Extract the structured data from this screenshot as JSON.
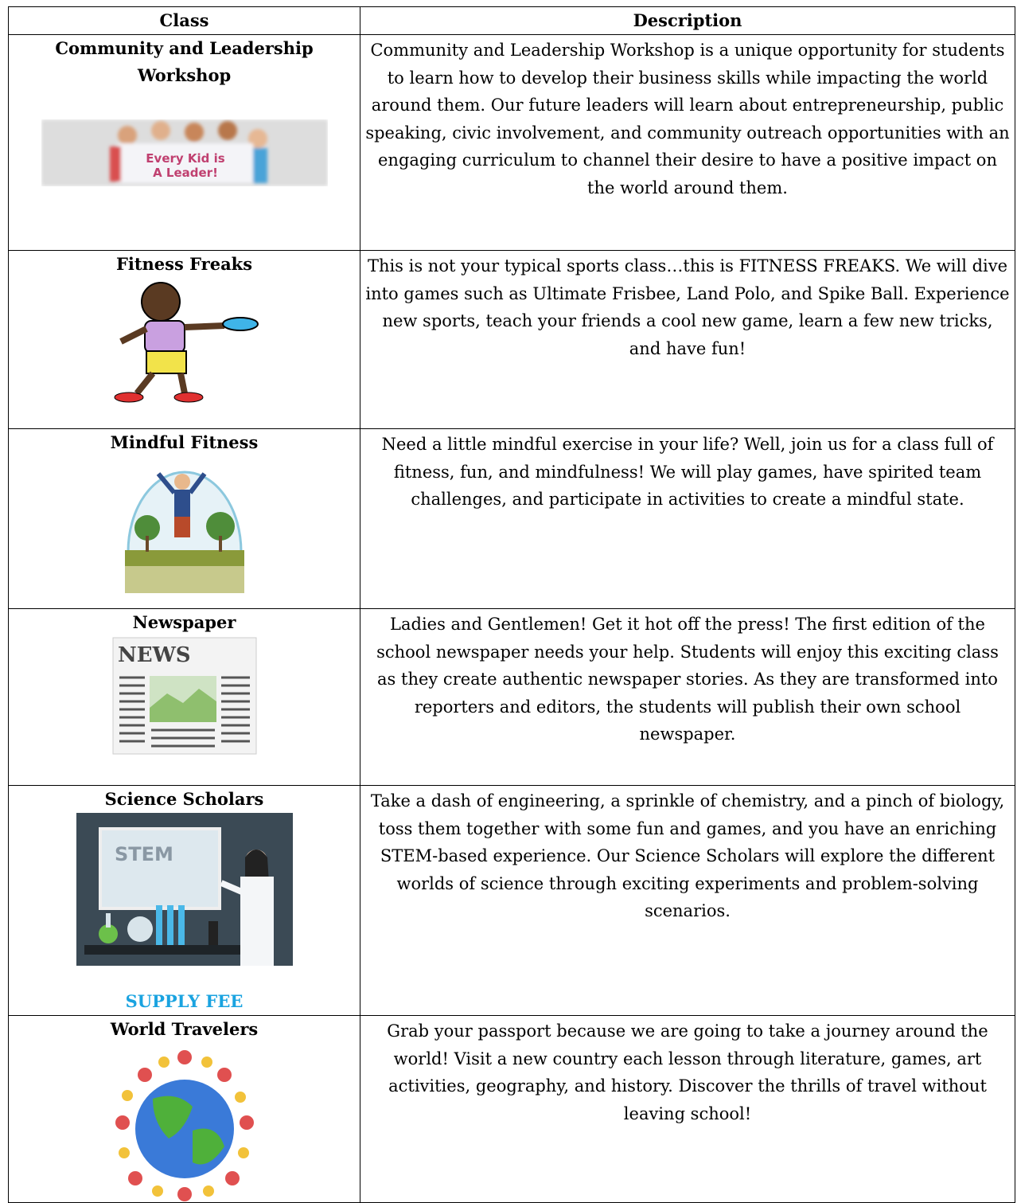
{
  "header": {
    "columns": [
      "Class",
      "Description"
    ]
  },
  "table": {
    "rows": [
      {
        "class": "Community and Leadership Workshop",
        "image_text": [
          "Every Kid is",
          "A Leader!"
        ],
        "description": "Community and Leadership Workshop is a unique opportunity for students to learn how to develop their business skills while impacting the world around them. Our future leaders will learn about entrepreneurship, public speaking, civic involvement, and community outreach opportunities with an engaging curriculum to channel their desire to have a positive impact on the world around them."
      },
      {
        "class": "Fitness Freaks",
        "description": "This is not your typical sports class…this is FITNESS FREAKS. We will dive into games such as Ultimate Frisbee, Land Polo, and Spike Ball. Experience new sports, teach your friends a cool new game, learn a few new tricks, and have fun!"
      },
      {
        "class": "Mindful Fitness",
        "description": "Need a little mindful exercise in your life? Well, join us for a class full of fitness, fun, and mindfulness! We will play games, have spirited team challenges, and participate in activities to create a mindful state."
      },
      {
        "class": "Newspaper",
        "image_text": [
          "NEWS"
        ],
        "description": "Ladies and Gentlemen! Get it hot off the press! The first edition of the school newspaper needs your help. Students will enjoy this exciting class as they create authentic newspaper stories. As they are transformed into reporters and editors, the students will publish their own school newspaper."
      },
      {
        "class": "Science Scholars",
        "image_text": [
          "STEM"
        ],
        "note": "SUPPLY FEE",
        "description": "Take a dash of engineering, a sprinkle of chemistry, and a pinch of biology, toss them together with some fun and games, and you have an enriching STEM-based experience. Our Science Scholars will explore the different worlds of science through exciting experiments and problem-solving scenarios."
      },
      {
        "class": "World Travelers",
        "description": "Grab your passport because we are going to take a journey around the world! Visit a new country each lesson through literature, games, art activities, geography, and history. Discover the thrills of travel without leaving school!"
      }
    ]
  }
}
